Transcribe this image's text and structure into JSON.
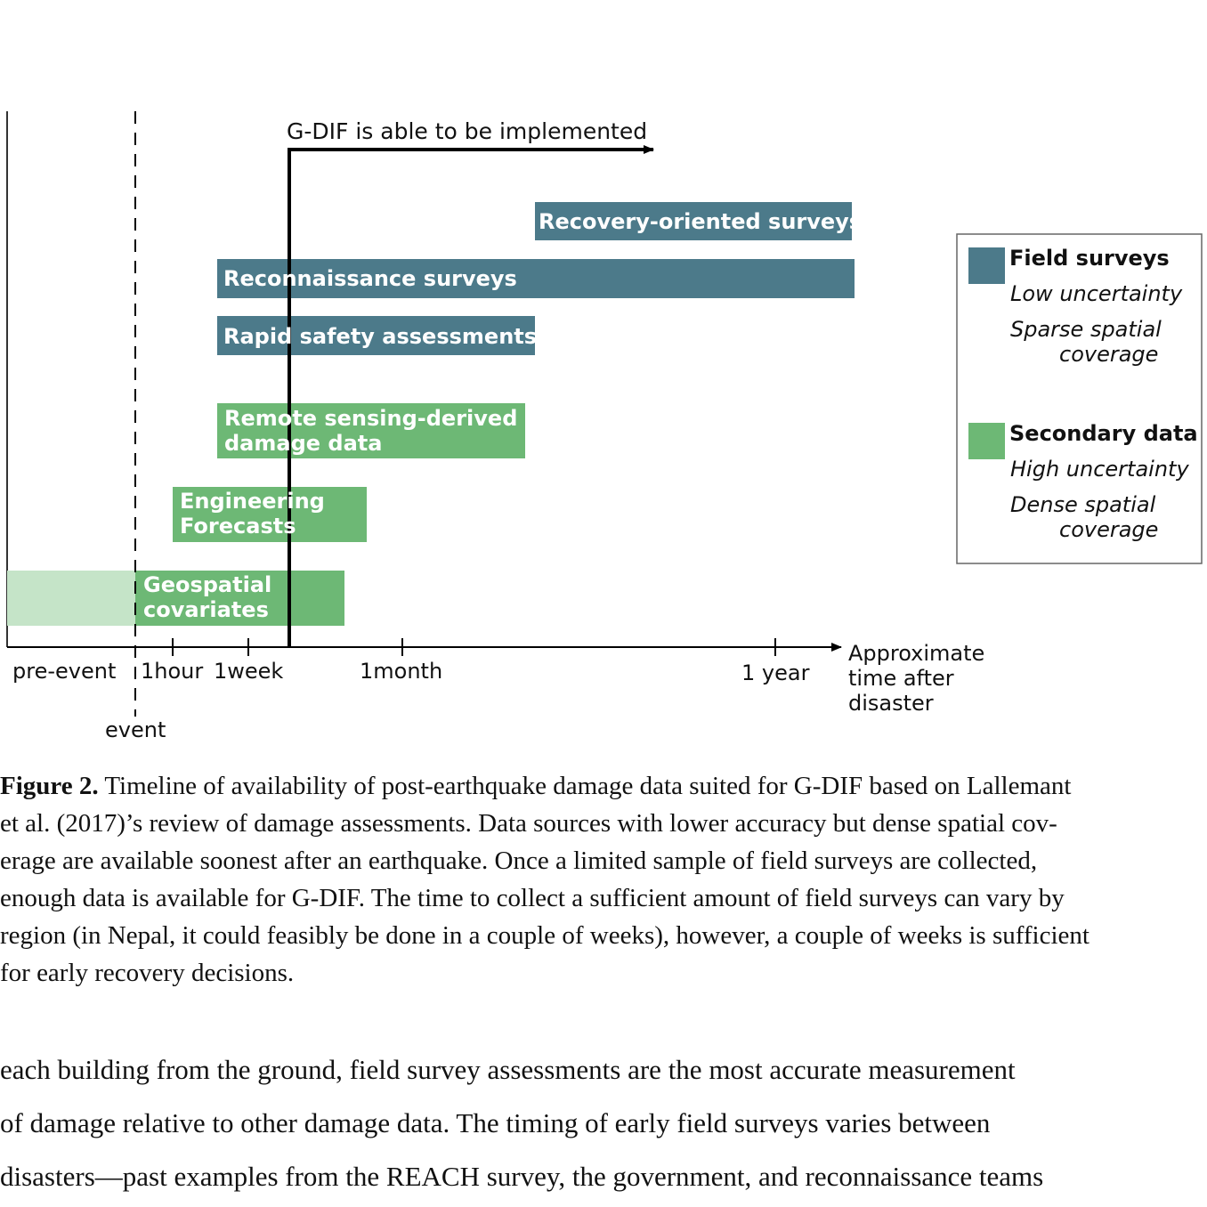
{
  "chart_data": {
    "type": "timeline",
    "time_axis": {
      "label": "Approximate time after disaster",
      "label_lines": [
        "Approximate",
        "time after",
        "disaster"
      ],
      "ticks": [
        "pre-event",
        "1hour",
        "1week",
        "1month",
        "1 year"
      ],
      "event_label": "event"
    },
    "implementation_label": "G-DIF is able to be implemented",
    "bars": [
      {
        "label_lines": [
          "Recovery-oriented surveys"
        ],
        "category": "Field surveys",
        "start": "1month+",
        "end": "1 year+"
      },
      {
        "label_lines": [
          "Reconnaissance surveys"
        ],
        "category": "Field surveys",
        "start": "1week-",
        "end": "1 year+"
      },
      {
        "label_lines": [
          "Rapid safety assessments"
        ],
        "category": "Field surveys",
        "start": "1week-",
        "end": "1month+"
      },
      {
        "label_lines": [
          "Remote sensing-derived",
          "damage data"
        ],
        "category": "Secondary data",
        "start": "1week-",
        "end": "1month+"
      },
      {
        "label_lines": [
          "Engineering",
          "Forecasts"
        ],
        "category": "Secondary data",
        "start": "1hour",
        "end": "1month"
      },
      {
        "label_lines": [
          "Geospatial",
          "covariates"
        ],
        "category": "Secondary data",
        "start": "pre-event",
        "end": "1month-"
      }
    ],
    "legend": [
      {
        "name": "Field surveys",
        "color": "#4c7a8a",
        "lines": [
          "Low uncertainty",
          "Sparse spatial",
          "coverage"
        ]
      },
      {
        "name": "Secondary data",
        "color": "#6db875",
        "lines": [
          "High uncertainty",
          "Dense spatial",
          "coverage"
        ]
      }
    ],
    "colors": {
      "field": "#4c7a8a",
      "secondary": "#6db875",
      "pre_event": "#c5e4c8"
    }
  },
  "caption": {
    "label": "Figure 2.",
    "lines": [
      " Timeline of availability of post-earthquake damage data suited for G-DIF based on Lallemant",
      "et al. (2017)’s review of damage assessments.  Data sources with lower accuracy but dense spatial cov-",
      "erage are available soonest after an earthquake.  Once a limited sample of field surveys are collected,",
      "enough data is available for G-DIF. The time to collect a sufficient amount of field surveys can vary by",
      "region (in Nepal, it could feasibly be done in a couple of weeks), however, a couple of weeks is sufficient",
      "for early recovery decisions."
    ]
  },
  "body": {
    "lines": [
      "each building from the ground, field survey assessments are the most accurate measurement",
      "of damage relative to other damage data.  The timing of early field surveys varies between",
      "disasters—past examples from the REACH survey, the government, and reconnaissance teams"
    ]
  }
}
